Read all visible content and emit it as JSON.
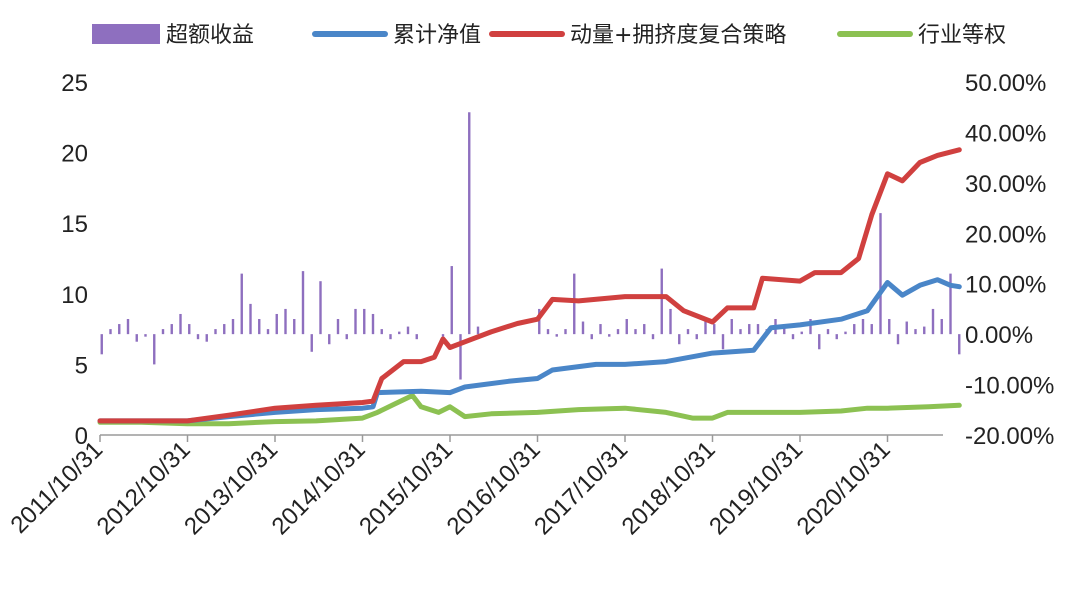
{
  "chart_data": {
    "type": "line",
    "title": "",
    "legend": {
      "placement": "top",
      "items": [
        {
          "label": "超额收益",
          "kind": "bar",
          "color": "#8e6fbf"
        },
        {
          "label": "累计净值",
          "kind": "line",
          "color": "#4a86c8"
        },
        {
          "label": "动量+拥挤度复合策略",
          "kind": "line",
          "color": "#d0403f"
        },
        {
          "label": "行业等权",
          "kind": "line",
          "color": "#8cc152"
        }
      ]
    },
    "x_ticks": [
      "2011/10/31",
      "2012/10/31",
      "2013/10/31",
      "2014/10/31",
      "2015/10/31",
      "2016/10/31",
      "2017/10/31",
      "2018/10/31",
      "2019/10/31",
      "2020/10/31"
    ],
    "x_range": [
      2011.83,
      2021.65
    ],
    "y_left": {
      "range": [
        0,
        25
      ],
      "ticks": [
        "0",
        "5",
        "10",
        "15",
        "20",
        "25"
      ]
    },
    "y_right": {
      "range": [
        -20,
        50
      ],
      "ticks": [
        "-20.00%",
        "-10.00%",
        "0.00%",
        "10.00%",
        "20.00%",
        "30.00%",
        "40.00%",
        "50.00%"
      ]
    },
    "series": [
      {
        "name": "行业等权",
        "axis": "left",
        "color": "#8cc152",
        "points": [
          [
            2011.83,
            0.9
          ],
          [
            2012.3,
            0.9
          ],
          [
            2012.83,
            0.8
          ],
          [
            2013.3,
            0.8
          ],
          [
            2013.83,
            0.95
          ],
          [
            2014.3,
            1.0
          ],
          [
            2014.83,
            1.2
          ],
          [
            2015.0,
            1.6
          ],
          [
            2015.2,
            2.2
          ],
          [
            2015.4,
            2.8
          ],
          [
            2015.5,
            2.0
          ],
          [
            2015.7,
            1.6
          ],
          [
            2015.83,
            2.0
          ],
          [
            2016.0,
            1.3
          ],
          [
            2016.3,
            1.5
          ],
          [
            2016.83,
            1.6
          ],
          [
            2017.3,
            1.8
          ],
          [
            2017.83,
            1.9
          ],
          [
            2018.3,
            1.6
          ],
          [
            2018.6,
            1.2
          ],
          [
            2018.83,
            1.2
          ],
          [
            2019.0,
            1.6
          ],
          [
            2019.3,
            1.6
          ],
          [
            2019.83,
            1.6
          ],
          [
            2020.3,
            1.7
          ],
          [
            2020.6,
            1.9
          ],
          [
            2020.83,
            1.9
          ],
          [
            2021.3,
            2.0
          ],
          [
            2021.65,
            2.1
          ]
        ]
      },
      {
        "name": "累计净值",
        "axis": "left",
        "color": "#4a86c8",
        "points": [
          [
            2011.83,
            1.0
          ],
          [
            2012.3,
            1.0
          ],
          [
            2012.83,
            1.0
          ],
          [
            2013.3,
            1.3
          ],
          [
            2013.83,
            1.6
          ],
          [
            2014.3,
            1.8
          ],
          [
            2014.83,
            1.9
          ],
          [
            2014.95,
            2.0
          ],
          [
            2015.0,
            3.0
          ],
          [
            2015.5,
            3.1
          ],
          [
            2015.83,
            3.0
          ],
          [
            2016.0,
            3.4
          ],
          [
            2016.5,
            3.8
          ],
          [
            2016.83,
            4.0
          ],
          [
            2017.0,
            4.6
          ],
          [
            2017.5,
            5.0
          ],
          [
            2017.83,
            5.0
          ],
          [
            2018.3,
            5.2
          ],
          [
            2018.83,
            5.8
          ],
          [
            2019.3,
            6.0
          ],
          [
            2019.5,
            7.6
          ],
          [
            2019.83,
            7.8
          ],
          [
            2020.3,
            8.2
          ],
          [
            2020.6,
            8.8
          ],
          [
            2020.83,
            10.8
          ],
          [
            2021.0,
            9.9
          ],
          [
            2021.2,
            10.6
          ],
          [
            2021.4,
            11.0
          ],
          [
            2021.55,
            10.6
          ],
          [
            2021.65,
            10.5
          ]
        ]
      },
      {
        "name": "动量+拥挤度复合策略",
        "axis": "left",
        "color": "#d0403f",
        "points": [
          [
            2011.83,
            1.0
          ],
          [
            2012.3,
            1.0
          ],
          [
            2012.83,
            1.0
          ],
          [
            2013.3,
            1.4
          ],
          [
            2013.83,
            1.9
          ],
          [
            2014.3,
            2.1
          ],
          [
            2014.83,
            2.3
          ],
          [
            2014.95,
            2.4
          ],
          [
            2015.05,
            4.0
          ],
          [
            2015.3,
            5.2
          ],
          [
            2015.5,
            5.2
          ],
          [
            2015.65,
            5.5
          ],
          [
            2015.75,
            6.8
          ],
          [
            2015.83,
            6.2
          ],
          [
            2016.0,
            6.6
          ],
          [
            2016.3,
            7.3
          ],
          [
            2016.6,
            7.9
          ],
          [
            2016.83,
            8.2
          ],
          [
            2017.0,
            9.6
          ],
          [
            2017.3,
            9.5
          ],
          [
            2017.83,
            9.8
          ],
          [
            2018.3,
            9.8
          ],
          [
            2018.5,
            8.8
          ],
          [
            2018.83,
            8.0
          ],
          [
            2019.0,
            9.0
          ],
          [
            2019.3,
            9.0
          ],
          [
            2019.4,
            11.1
          ],
          [
            2019.83,
            10.9
          ],
          [
            2020.0,
            11.5
          ],
          [
            2020.3,
            11.5
          ],
          [
            2020.5,
            12.5
          ],
          [
            2020.65,
            15.6
          ],
          [
            2020.83,
            18.5
          ],
          [
            2021.0,
            18.0
          ],
          [
            2021.2,
            19.3
          ],
          [
            2021.4,
            19.8
          ],
          [
            2021.65,
            20.2
          ]
        ]
      },
      {
        "name": "超额收益",
        "axis": "right",
        "type": "bar",
        "color": "#8e6fbf",
        "points": [
          [
            2011.85,
            -4
          ],
          [
            2011.95,
            1
          ],
          [
            2012.05,
            2
          ],
          [
            2012.15,
            3
          ],
          [
            2012.25,
            -1.5
          ],
          [
            2012.35,
            -0.5
          ],
          [
            2012.45,
            -6
          ],
          [
            2012.55,
            1
          ],
          [
            2012.65,
            2
          ],
          [
            2012.75,
            4
          ],
          [
            2012.85,
            2
          ],
          [
            2012.95,
            -1
          ],
          [
            2013.05,
            -1.5
          ],
          [
            2013.15,
            1
          ],
          [
            2013.25,
            2
          ],
          [
            2013.35,
            3
          ],
          [
            2013.45,
            12
          ],
          [
            2013.55,
            6
          ],
          [
            2013.65,
            3
          ],
          [
            2013.75,
            1
          ],
          [
            2013.85,
            4
          ],
          [
            2013.95,
            5
          ],
          [
            2014.05,
            3
          ],
          [
            2014.15,
            12.5
          ],
          [
            2014.25,
            -3.5
          ],
          [
            2014.35,
            10.5
          ],
          [
            2014.45,
            -2
          ],
          [
            2014.55,
            3
          ],
          [
            2014.65,
            -1
          ],
          [
            2014.75,
            5
          ],
          [
            2014.85,
            5
          ],
          [
            2014.95,
            4
          ],
          [
            2015.05,
            1
          ],
          [
            2015.15,
            -1
          ],
          [
            2015.25,
            0.5
          ],
          [
            2015.35,
            1.5
          ],
          [
            2015.45,
            -1
          ],
          [
            2015.75,
            -0.5
          ],
          [
            2015.85,
            13.5
          ],
          [
            2015.95,
            -9
          ],
          [
            2016.05,
            44
          ],
          [
            2016.15,
            1.5
          ],
          [
            2016.85,
            5
          ],
          [
            2016.95,
            1
          ],
          [
            2017.05,
            -0.5
          ],
          [
            2017.15,
            1
          ],
          [
            2017.25,
            12
          ],
          [
            2017.35,
            2.5
          ],
          [
            2017.45,
            -1
          ],
          [
            2017.55,
            2
          ],
          [
            2017.65,
            -0.5
          ],
          [
            2017.75,
            1
          ],
          [
            2017.85,
            3
          ],
          [
            2017.95,
            1
          ],
          [
            2018.05,
            2
          ],
          [
            2018.15,
            -1
          ],
          [
            2018.25,
            13
          ],
          [
            2018.35,
            5
          ],
          [
            2018.45,
            -2
          ],
          [
            2018.55,
            1
          ],
          [
            2018.65,
            -1
          ],
          [
            2018.75,
            3
          ],
          [
            2018.85,
            2
          ],
          [
            2018.95,
            -3
          ],
          [
            2019.05,
            3
          ],
          [
            2019.15,
            1
          ],
          [
            2019.25,
            2
          ],
          [
            2019.35,
            2
          ],
          [
            2019.45,
            1
          ],
          [
            2019.55,
            3
          ],
          [
            2019.65,
            2
          ],
          [
            2019.75,
            -1
          ],
          [
            2019.85,
            0.5
          ],
          [
            2019.95,
            3
          ],
          [
            2020.05,
            -3
          ],
          [
            2020.15,
            1
          ],
          [
            2020.25,
            -1
          ],
          [
            2020.35,
            0.5
          ],
          [
            2020.45,
            2
          ],
          [
            2020.55,
            3
          ],
          [
            2020.65,
            2
          ],
          [
            2020.75,
            24
          ],
          [
            2020.85,
            3
          ],
          [
            2020.95,
            -2
          ],
          [
            2021.05,
            2.5
          ],
          [
            2021.15,
            1
          ],
          [
            2021.25,
            1.5
          ],
          [
            2021.35,
            5
          ],
          [
            2021.45,
            3
          ],
          [
            2021.55,
            12
          ],
          [
            2021.65,
            -4
          ]
        ]
      }
    ]
  }
}
